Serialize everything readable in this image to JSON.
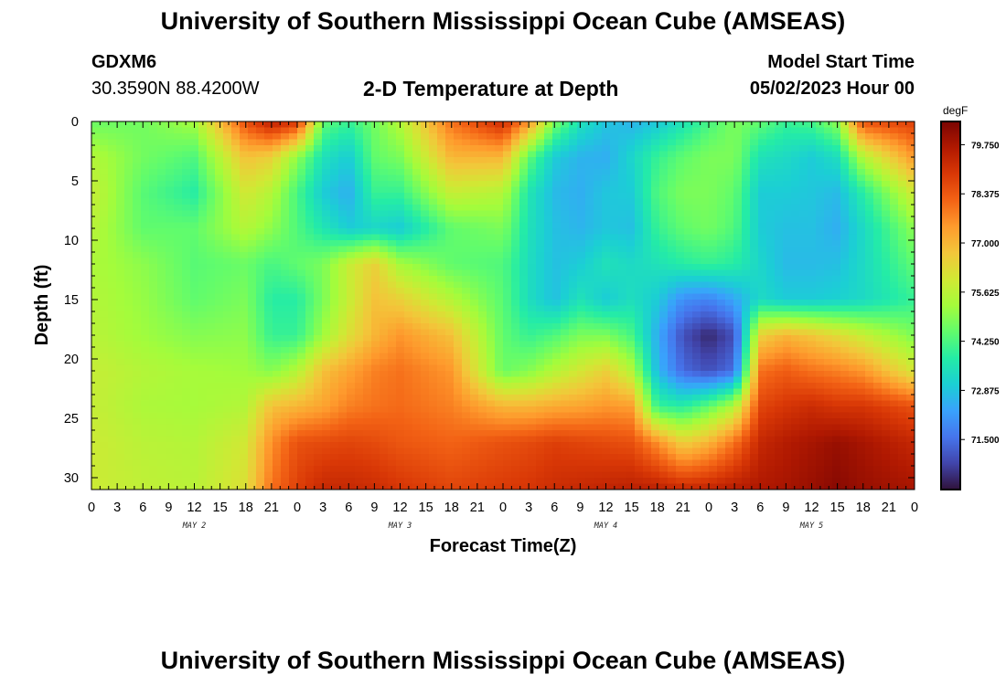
{
  "header": {
    "title": "University of Southern Mississippi Ocean Cube (AMSEAS)",
    "station": "GDXM6",
    "coordinates": "30.3590N  88.4200W",
    "subtitle": "2-D Temperature at Depth",
    "model_start_label": "Model Start Time",
    "model_start_value": "05/02/2023 Hour 00"
  },
  "footer": {
    "title": "University of Southern Mississippi Ocean Cube (AMSEAS)"
  },
  "chart_data": {
    "type": "heatmap",
    "xlabel": "Forecast Time(Z)",
    "ylabel": "Depth (ft)",
    "colorbar_unit": "degF",
    "x_tick_labels": [
      "0",
      "3",
      "6",
      "9",
      "12",
      "15",
      "18",
      "21",
      "0",
      "3",
      "6",
      "9",
      "12",
      "15",
      "18",
      "21",
      "0",
      "3",
      "6",
      "9",
      "12",
      "15",
      "18",
      "21",
      "0",
      "3",
      "6",
      "9",
      "12",
      "15",
      "18",
      "21",
      "0"
    ],
    "x_day_labels": [
      "MAY 2",
      "MAY 3",
      "MAY 4",
      "MAY 5"
    ],
    "y_ticks": [
      0,
      5,
      10,
      15,
      20,
      25,
      30
    ],
    "ylim": [
      0,
      31
    ],
    "xlim_hours": [
      0,
      96
    ],
    "colorbar_ticks": [
      "79.750",
      "78.375",
      "77.000",
      "75.625",
      "74.250",
      "72.875",
      "71.500"
    ],
    "colorbar_range": [
      70.1,
      80.4
    ],
    "colormap": [
      "#30123b",
      "#4145ab",
      "#4675ed",
      "#39a2fc",
      "#1bcfd4",
      "#24eca6",
      "#61fc6c",
      "#a4fc3b",
      "#d1e834",
      "#f3c63a",
      "#fe9b2d",
      "#f36315",
      "#d93806",
      "#b11901",
      "#7a0402"
    ],
    "depths_ft": [
      0,
      3,
      6,
      9,
      12,
      15,
      18,
      21,
      24,
      27,
      31
    ],
    "hours": [
      0,
      6,
      12,
      18,
      21,
      24,
      27,
      30,
      33,
      36,
      42,
      48,
      51,
      54,
      57,
      60,
      63,
      66,
      69,
      72,
      75,
      78,
      81,
      84,
      87,
      90,
      96
    ],
    "temperature": [
      [
        74.6,
        74.7,
        75.3,
        78.5,
        79.5,
        79.0,
        74.5,
        74.0,
        74.7,
        75.5,
        78.0,
        79.2,
        77.5,
        74.8,
        73.5,
        72.9,
        72.6,
        72.9,
        73.5,
        74.2,
        74.8,
        74.5,
        74.0,
        74.2,
        75.0,
        78.5,
        78.8
      ],
      [
        75.5,
        74.7,
        74.3,
        76.8,
        76.5,
        75.0,
        73.5,
        73.0,
        74.5,
        74.8,
        77.0,
        77.0,
        74.5,
        73.0,
        72.6,
        72.5,
        73.2,
        74.0,
        74.5,
        74.8,
        74.8,
        73.5,
        73.3,
        73.0,
        73.4,
        75.5,
        77.5
      ],
      [
        75.8,
        74.4,
        73.8,
        76.0,
        75.5,
        74.2,
        73.0,
        72.5,
        74.0,
        74.0,
        75.8,
        75.5,
        73.6,
        72.7,
        72.5,
        72.9,
        73.0,
        74.3,
        74.8,
        74.8,
        74.5,
        73.0,
        73.0,
        72.9,
        72.7,
        73.8,
        76.0
      ],
      [
        75.6,
        74.5,
        74.5,
        75.5,
        75.0,
        74.3,
        73.6,
        73.0,
        73.2,
        73.0,
        74.5,
        74.8,
        73.5,
        72.8,
        72.6,
        72.9,
        72.8,
        74.0,
        74.5,
        74.7,
        74.3,
        73.0,
        72.8,
        72.8,
        72.5,
        73.3,
        75.0
      ],
      [
        75.4,
        75.0,
        74.4,
        74.6,
        74.2,
        74.5,
        74.8,
        75.8,
        76.5,
        75.3,
        74.5,
        74.3,
        73.4,
        72.8,
        73.0,
        73.5,
        73.3,
        73.5,
        73.8,
        74.0,
        73.8,
        73.2,
        72.7,
        72.7,
        72.8,
        73.3,
        74.5
      ],
      [
        75.5,
        75.1,
        74.5,
        74.8,
        73.8,
        73.8,
        74.8,
        75.8,
        76.8,
        76.5,
        75.5,
        74.4,
        73.4,
        72.8,
        73.5,
        73.0,
        73.4,
        73.0,
        72.0,
        71.8,
        72.4,
        73.3,
        73.0,
        73.0,
        73.1,
        73.3,
        74.0
      ],
      [
        75.6,
        75.2,
        74.9,
        75.0,
        74.0,
        74.0,
        75.2,
        76.2,
        77.0,
        77.5,
        76.8,
        74.5,
        74.0,
        74.3,
        74.8,
        74.8,
        74.2,
        72.5,
        71.0,
        70.4,
        71.0,
        76.5,
        77.0,
        76.7,
        76.3,
        75.8,
        74.8
      ],
      [
        75.8,
        75.5,
        75.3,
        75.2,
        74.9,
        75.5,
        76.8,
        77.3,
        77.8,
        78.0,
        77.5,
        74.6,
        74.9,
        75.5,
        76.0,
        76.5,
        75.5,
        72.7,
        71.4,
        71.0,
        71.5,
        78.0,
        78.3,
        78.0,
        77.8,
        77.5,
        76.0
      ],
      [
        75.8,
        75.4,
        75.3,
        75.5,
        76.8,
        77.0,
        77.3,
        77.8,
        78.0,
        78.1,
        77.8,
        77.0,
        77.0,
        77.2,
        77.3,
        77.5,
        77.4,
        74.0,
        73.8,
        74.5,
        75.5,
        78.7,
        79.0,
        79.2,
        79.0,
        79.0,
        78.5
      ],
      [
        75.9,
        75.6,
        75.5,
        76.0,
        77.6,
        78.5,
        78.6,
        78.7,
        78.6,
        78.4,
        78.2,
        78.5,
        78.6,
        78.8,
        78.7,
        78.6,
        78.5,
        77.6,
        76.5,
        77.0,
        78.0,
        79.3,
        79.6,
        79.8,
        80.0,
        79.8,
        79.3
      ],
      [
        75.9,
        75.7,
        75.6,
        76.2,
        78.0,
        78.8,
        79.3,
        79.3,
        79.2,
        79.0,
        78.7,
        78.9,
        79.0,
        79.2,
        79.3,
        79.4,
        79.5,
        79.5,
        79.3,
        79.4,
        79.6,
        79.7,
        79.8,
        80.0,
        80.2,
        80.0,
        79.8
      ]
    ]
  }
}
